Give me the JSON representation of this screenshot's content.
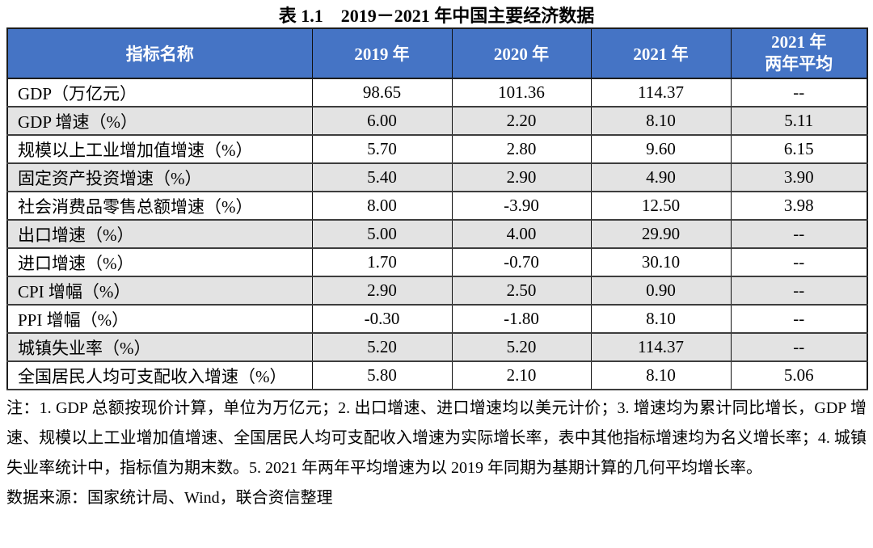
{
  "title": "表 1.1　2019－2021 年中国主要经济数据",
  "colors": {
    "header_bg": "#4574C5",
    "header_text": "#FFFFFF",
    "row_alt_bg": "#E3E3E3"
  },
  "table": {
    "headers": {
      "indicator": "指标名称",
      "y2019": "2019 年",
      "y2020": "2020 年",
      "y2021": "2021 年",
      "avg": "2021 年\n两年平均"
    },
    "rows": [
      {
        "label": "GDP（万亿元）",
        "y2019": "98.65",
        "y2020": "101.36",
        "y2021": "114.37",
        "avg": "--"
      },
      {
        "label": "GDP 增速（%）",
        "y2019": "6.00",
        "y2020": "2.20",
        "y2021": "8.10",
        "avg": "5.11"
      },
      {
        "label": "规模以上工业增加值增速（%）",
        "y2019": "5.70",
        "y2020": "2.80",
        "y2021": "9.60",
        "avg": "6.15"
      },
      {
        "label": "固定资产投资增速（%）",
        "y2019": "5.40",
        "y2020": "2.90",
        "y2021": "4.90",
        "avg": "3.90"
      },
      {
        "label": "社会消费品零售总额增速（%）",
        "y2019": "8.00",
        "y2020": "-3.90",
        "y2021": "12.50",
        "avg": "3.98"
      },
      {
        "label": "出口增速（%）",
        "y2019": "5.00",
        "y2020": "4.00",
        "y2021": "29.90",
        "avg": "--"
      },
      {
        "label": "进口增速（%）",
        "y2019": "1.70",
        "y2020": "-0.70",
        "y2021": "30.10",
        "avg": "--"
      },
      {
        "label": "CPI 增幅（%）",
        "y2019": "2.90",
        "y2020": "2.50",
        "y2021": "0.90",
        "avg": "--"
      },
      {
        "label": "PPI 增幅（%）",
        "y2019": "-0.30",
        "y2020": "-1.80",
        "y2021": "8.10",
        "avg": "--"
      },
      {
        "label": "城镇失业率（%）",
        "y2019": "5.20",
        "y2020": "5.20",
        "y2021": "114.37",
        "avg": "--"
      },
      {
        "label": "全国居民人均可支配收入增速（%）",
        "y2019": "5.80",
        "y2020": "2.10",
        "y2021": "8.10",
        "avg": "5.06"
      }
    ]
  },
  "notes": "注：1. GDP 总额按现价计算，单位为万亿元；2. 出口增速、进口增速均以美元计价；3. 增速均为累计同比增长，GDP 增速、规模以上工业增加值增速、全国居民人均可支配收入增速为实际增长率，表中其他指标增速均为名义增长率；4. 城镇失业率统计中，指标值为期末数。5. 2021 年两年平均增速为以 2019 年同期为基期计算的几何平均增长率。",
  "source": "数据来源：国家统计局、Wind，联合资信整理"
}
